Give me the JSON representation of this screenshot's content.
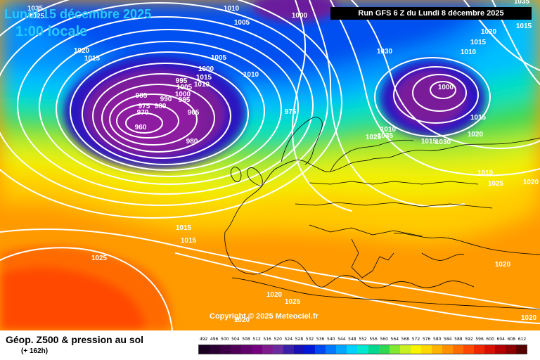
{
  "header": {
    "date": "Lundi 15 décembre 2025",
    "time": "1:00 locale",
    "run": "Run GFS 6 Z du Lundi 8 décembre 2025"
  },
  "copyright": "Copyright © 2025 Meteociel.fr",
  "legend": {
    "title": "Géop. Z500 & pression au sol",
    "subtitle": "(+ 162h)",
    "scale": [
      {
        "value": "492",
        "color": "#1a0020"
      },
      {
        "value": "496",
        "color": "#2b0033"
      },
      {
        "value": "500",
        "color": "#3d0046"
      },
      {
        "value": "504",
        "color": "#4f0059"
      },
      {
        "value": "508",
        "color": "#62006c"
      },
      {
        "value": "512",
        "color": "#75007f"
      },
      {
        "value": "516",
        "color": "#7e1a8e"
      },
      {
        "value": "520",
        "color": "#6a2aa0"
      },
      {
        "value": "524",
        "color": "#3a1fa8"
      },
      {
        "value": "528",
        "color": "#1810b5"
      },
      {
        "value": "532",
        "color": "#0018d8"
      },
      {
        "value": "536",
        "color": "#0048f0"
      },
      {
        "value": "540",
        "color": "#0078ff"
      },
      {
        "value": "544",
        "color": "#00a6ff"
      },
      {
        "value": "548",
        "color": "#00d2ff"
      },
      {
        "value": "552",
        "color": "#00e8d0"
      },
      {
        "value": "556",
        "color": "#00d890"
      },
      {
        "value": "560",
        "color": "#30d850"
      },
      {
        "value": "564",
        "color": "#80e830"
      },
      {
        "value": "568",
        "color": "#c8f020"
      },
      {
        "value": "572",
        "color": "#f8f400"
      },
      {
        "value": "576",
        "color": "#ffd800"
      },
      {
        "value": "580",
        "color": "#ffb400"
      },
      {
        "value": "584",
        "color": "#ff9000"
      },
      {
        "value": "588",
        "color": "#ff6c00"
      },
      {
        "value": "592",
        "color": "#ff4800"
      },
      {
        "value": "596",
        "color": "#f02800"
      },
      {
        "value": "600",
        "color": "#d81000"
      },
      {
        "value": "604",
        "color": "#b40000"
      },
      {
        "value": "608",
        "color": "#8c0000"
      },
      {
        "value": "612",
        "color": "#560000"
      }
    ]
  },
  "pressure_systems": [
    {
      "label": "960",
      "type": "low"
    },
    {
      "label": "1000",
      "type": "low"
    },
    {
      "label": "1025",
      "type": "high"
    }
  ],
  "isobar_labels": [
    {
      "text": "1035"
    },
    {
      "text": "1025"
    },
    {
      "text": "1020"
    },
    {
      "text": "1015"
    },
    {
      "text": "1010"
    },
    {
      "text": "1005"
    },
    {
      "text": "1000"
    },
    {
      "text": "1035"
    },
    {
      "text": "1015"
    },
    {
      "text": "1020"
    },
    {
      "text": "1015"
    },
    {
      "text": "1010"
    },
    {
      "text": "1030"
    },
    {
      "text": "1005"
    },
    {
      "text": "1000"
    },
    {
      "text": "1010"
    },
    {
      "text": "1015"
    },
    {
      "text": "1010"
    },
    {
      "text": "995"
    },
    {
      "text": "1005"
    },
    {
      "text": "1000"
    },
    {
      "text": "995"
    },
    {
      "text": "990"
    },
    {
      "text": "985"
    },
    {
      "text": "975"
    },
    {
      "text": "970"
    },
    {
      "text": "965"
    },
    {
      "text": "980"
    },
    {
      "text": "980"
    },
    {
      "text": "975"
    },
    {
      "text": "1010"
    },
    {
      "text": "1025"
    },
    {
      "text": "1035"
    },
    {
      "text": "1030"
    },
    {
      "text": "1020"
    },
    {
      "text": "1015"
    },
    {
      "text": "1010"
    },
    {
      "text": "1025"
    },
    {
      "text": "1020"
    },
    {
      "text": "1015"
    },
    {
      "text": "1015"
    },
    {
      "text": "1020"
    },
    {
      "text": "1025"
    },
    {
      "text": "1020"
    },
    {
      "text": "1020"
    },
    {
      "text": "1020"
    },
    {
      "text": "1015"
    },
    {
      "text": "1020"
    }
  ]
}
